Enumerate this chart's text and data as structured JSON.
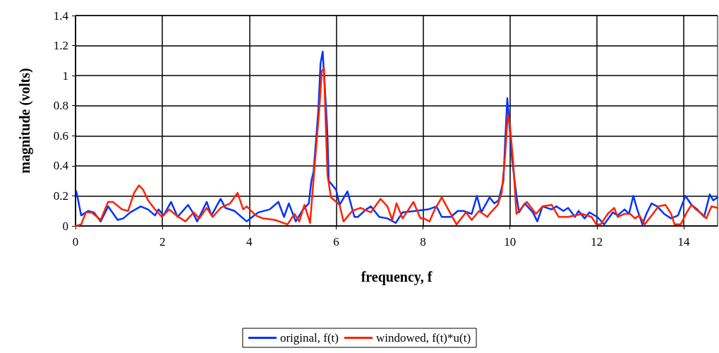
{
  "chart_data": {
    "type": "line",
    "xlabel": "frequency, f",
    "ylabel": "magnitude (volts)",
    "xlim": [
      0,
      14.78
    ],
    "xticks": [
      0,
      2,
      4,
      6,
      8,
      10,
      12,
      14
    ],
    "ylim": [
      0,
      1.4
    ],
    "yticks": [
      0,
      0.2,
      0.4,
      0.6,
      0.8,
      1,
      1.2,
      1.4
    ],
    "grid": true,
    "legend": "bottom",
    "marker": "none",
    "line_style": "solid",
    "series": [
      {
        "name": "original, f(t)",
        "color": "#0033ff",
        "x": [
          0.02,
          0.13,
          0.29,
          0.42,
          0.58,
          0.75,
          0.97,
          1.1,
          1.26,
          1.5,
          1.67,
          1.83,
          1.91,
          2.03,
          2.2,
          2.35,
          2.59,
          2.7,
          2.8,
          3.02,
          3.13,
          3.34,
          3.45,
          3.66,
          3.94,
          4.07,
          4.21,
          4.47,
          4.67,
          4.8,
          4.91,
          5.07,
          5.24,
          5.37,
          5.43,
          5.48,
          5.59,
          5.64,
          5.69,
          5.77,
          5.8,
          5.83,
          6.0,
          6.08,
          6.26,
          6.42,
          6.5,
          6.69,
          6.8,
          6.99,
          7.18,
          7.37,
          7.53,
          7.83,
          8.12,
          8.31,
          8.43,
          8.64,
          8.8,
          8.93,
          9.12,
          9.24,
          9.34,
          9.53,
          9.64,
          9.74,
          9.85,
          9.89,
          9.94,
          10.05,
          10.15,
          10.21,
          10.34,
          10.53,
          10.63,
          10.75,
          10.96,
          11.07,
          11.23,
          11.34,
          11.5,
          11.58,
          11.72,
          11.83,
          12.01,
          12.17,
          12.37,
          12.48,
          12.64,
          12.74,
          12.84,
          12.93,
          13.05,
          13.14,
          13.26,
          13.39,
          13.55,
          13.71,
          13.87,
          14.04,
          14.18,
          14.31,
          14.47,
          14.6,
          14.68,
          14.78
        ],
        "values": [
          0.23,
          0.07,
          0.1,
          0.09,
          0.03,
          0.13,
          0.04,
          0.05,
          0.09,
          0.13,
          0.11,
          0.07,
          0.11,
          0.07,
          0.16,
          0.06,
          0.14,
          0.09,
          0.03,
          0.16,
          0.07,
          0.18,
          0.12,
          0.1,
          0.03,
          0.06,
          0.09,
          0.11,
          0.16,
          0.06,
          0.15,
          0.03,
          0.11,
          0.15,
          0.3,
          0.36,
          0.77,
          1.08,
          1.16,
          0.77,
          0.6,
          0.3,
          0.24,
          0.14,
          0.23,
          0.06,
          0.06,
          0.11,
          0.13,
          0.06,
          0.05,
          0.02,
          0.09,
          0.1,
          0.11,
          0.13,
          0.06,
          0.06,
          0.1,
          0.1,
          0.08,
          0.2,
          0.09,
          0.19,
          0.15,
          0.17,
          0.3,
          0.56,
          0.85,
          0.44,
          0.2,
          0.09,
          0.15,
          0.09,
          0.03,
          0.13,
          0.11,
          0.13,
          0.1,
          0.12,
          0.06,
          0.1,
          0.05,
          0.09,
          0.06,
          0.01,
          0.09,
          0.07,
          0.11,
          0.08,
          0.2,
          0.11,
          0.01,
          0.08,
          0.15,
          0.13,
          0.08,
          0.05,
          0.07,
          0.2,
          0.14,
          0.11,
          0.06,
          0.21,
          0.17,
          0.19
        ]
      },
      {
        "name": "windowed, f(t)*u(t)",
        "color": "#ff2200",
        "x": [
          0.01,
          0.13,
          0.24,
          0.37,
          0.58,
          0.75,
          0.86,
          1.07,
          1.21,
          1.35,
          1.46,
          1.56,
          1.67,
          1.83,
          1.99,
          2.16,
          2.32,
          2.53,
          2.72,
          2.85,
          3.02,
          3.16,
          3.34,
          3.56,
          3.73,
          3.86,
          3.94,
          4.15,
          4.31,
          4.59,
          4.88,
          5.04,
          5.15,
          5.27,
          5.4,
          5.51,
          5.61,
          5.67,
          5.72,
          5.75,
          5.8,
          5.88,
          6.08,
          6.17,
          6.37,
          6.56,
          6.8,
          7.02,
          7.18,
          7.29,
          7.39,
          7.53,
          7.78,
          7.94,
          8.02,
          8.15,
          8.27,
          8.43,
          8.77,
          8.99,
          9.12,
          9.29,
          9.48,
          9.56,
          9.72,
          9.81,
          9.89,
          9.95,
          10.0,
          10.07,
          10.15,
          10.39,
          10.6,
          10.75,
          10.96,
          11.12,
          11.34,
          11.66,
          11.88,
          11.99,
          12.09,
          12.25,
          12.4,
          12.48,
          12.64,
          12.77,
          12.88,
          12.98,
          13.1,
          13.29,
          13.42,
          13.58,
          13.71,
          13.79,
          13.93,
          14.07,
          14.18,
          14.28,
          14.42,
          14.52,
          14.64,
          14.78
        ],
        "values": [
          0,
          0.01,
          0.09,
          0.09,
          0.04,
          0.16,
          0.16,
          0.11,
          0.1,
          0.22,
          0.27,
          0.24,
          0.17,
          0.11,
          0.06,
          0.11,
          0.07,
          0.03,
          0.09,
          0.05,
          0.12,
          0.06,
          0.12,
          0.15,
          0.22,
          0.11,
          0.13,
          0.07,
          0.05,
          0.04,
          0.01,
          0.08,
          0.03,
          0.14,
          0.02,
          0.42,
          0.77,
          1.03,
          1.05,
          0.77,
          0.34,
          0.19,
          0.14,
          0.03,
          0.1,
          0.12,
          0.09,
          0.18,
          0.13,
          0.04,
          0.15,
          0.05,
          0.16,
          0.05,
          0.05,
          0.03,
          0.11,
          0.19,
          0.01,
          0.09,
          0.04,
          0.1,
          0.06,
          0.09,
          0.14,
          0.22,
          0.47,
          0.74,
          0.67,
          0.44,
          0.08,
          0.16,
          0.08,
          0.13,
          0.14,
          0.06,
          0.06,
          0.08,
          0.06,
          0.01,
          0.01,
          0.08,
          0.12,
          0.06,
          0.08,
          0.08,
          0.05,
          0.07,
          0.01,
          0.08,
          0.13,
          0.14,
          0.08,
          0.01,
          0.01,
          0.09,
          0.14,
          0.11,
          0.08,
          0.05,
          0.13,
          0.12
        ]
      }
    ]
  }
}
